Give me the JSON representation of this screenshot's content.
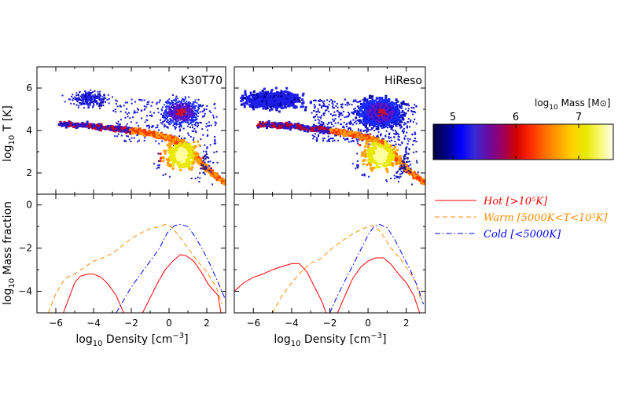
{
  "chart_data": [
    {
      "type": "heatmap",
      "panel_label": "K30T70",
      "ylabel": "log10 T [K]",
      "xlim": [
        -7,
        3
      ],
      "ylim": [
        1,
        7
      ],
      "yticks": [
        "2",
        "4",
        "6"
      ]
    },
    {
      "type": "heatmap",
      "panel_label": "HiReso",
      "xlim": [
        -7,
        3
      ],
      "ylim": [
        1,
        7
      ]
    },
    {
      "type": "line",
      "ylabel": "log10 Mass fraction",
      "xlabel": "log10 Density [cm-3]",
      "xlim": [
        -7,
        3
      ],
      "ylim": [
        -5,
        0.5
      ],
      "xticks": [
        "-6",
        "-4",
        "-2",
        "0",
        "2"
      ],
      "yticks": [
        "0",
        "-2",
        "-4"
      ],
      "series": [
        {
          "name": "Hot [>10^5K]",
          "color": "#ff0000",
          "dash": "solid",
          "segments": [
            [
              [
                -5.6,
                -5.0
              ],
              [
                -5.3,
                -4.3
              ],
              [
                -5.0,
                -3.6
              ],
              [
                -4.7,
                -3.3
              ],
              [
                -4.3,
                -3.2
              ],
              [
                -4.0,
                -3.2
              ],
              [
                -3.6,
                -3.35
              ],
              [
                -3.2,
                -3.7
              ],
              [
                -2.8,
                -4.2
              ],
              [
                -2.4,
                -5.0
              ]
            ],
            [
              [
                -1.4,
                -5.0
              ],
              [
                -1.0,
                -4.3
              ],
              [
                -0.6,
                -3.6
              ],
              [
                -0.2,
                -3.0
              ],
              [
                0.2,
                -2.6
              ],
              [
                0.6,
                -2.3
              ],
              [
                0.9,
                -2.35
              ],
              [
                1.3,
                -2.6
              ],
              [
                1.7,
                -3.1
              ],
              [
                2.1,
                -3.7
              ],
              [
                2.6,
                -4.2
              ],
              [
                2.75,
                -5.0
              ]
            ]
          ]
        },
        {
          "name": "Warm [5000K<T<10^5K]",
          "color": "#ff8c00",
          "dash": "dashed",
          "segments": [
            [
              [
                -6.4,
                -5.0
              ],
              [
                -6.0,
                -4.1
              ],
              [
                -5.5,
                -3.4
              ],
              [
                -5.0,
                -3.2
              ],
              [
                -4.5,
                -2.9
              ],
              [
                -4.0,
                -2.6
              ],
              [
                -3.5,
                -2.45
              ],
              [
                -3.0,
                -2.25
              ],
              [
                -2.5,
                -1.9
              ],
              [
                -2.0,
                -1.55
              ],
              [
                -1.5,
                -1.3
              ],
              [
                -1.0,
                -1.1
              ],
              [
                -0.5,
                -1.0
              ],
              [
                -0.2,
                -0.9
              ],
              [
                0.1,
                -1.0
              ],
              [
                0.5,
                -1.4
              ],
              [
                1.0,
                -2.0
              ],
              [
                1.5,
                -2.6
              ],
              [
                2.0,
                -3.1
              ],
              [
                2.5,
                -3.8
              ],
              [
                2.8,
                -4.6
              ]
            ]
          ]
        },
        {
          "name": "Cold [<5000K]",
          "color": "#0000ff",
          "dash": "dashdot",
          "segments": [
            [
              [
                -2.8,
                -5.0
              ],
              [
                -2.4,
                -4.4
              ],
              [
                -2.0,
                -3.8
              ],
              [
                -1.5,
                -3.2
              ],
              [
                -1.0,
                -2.6
              ],
              [
                -0.5,
                -2.0
              ],
              [
                -0.1,
                -1.3
              ],
              [
                0.3,
                -0.95
              ],
              [
                0.6,
                -0.9
              ],
              [
                1.0,
                -1.0
              ],
              [
                1.4,
                -1.5
              ],
              [
                1.8,
                -2.1
              ],
              [
                2.2,
                -2.8
              ],
              [
                2.6,
                -3.6
              ],
              [
                3.0,
                -4.4
              ]
            ]
          ]
        }
      ]
    },
    {
      "type": "line",
      "xlabel": "log10 Density [cm-3]",
      "xlim": [
        -7,
        3
      ],
      "ylim": [
        -5,
        0.5
      ],
      "xticks": [
        "-6",
        "-4",
        "-2",
        "0",
        "2"
      ],
      "series": [
        {
          "name": "Hot [>10^5K]",
          "color": "#ff0000",
          "dash": "solid",
          "segments": [
            [
              [
                -7.0,
                -4.0
              ],
              [
                -6.5,
                -3.6
              ],
              [
                -6.0,
                -3.35
              ],
              [
                -5.5,
                -3.2
              ],
              [
                -5.0,
                -3.0
              ],
              [
                -4.5,
                -2.85
              ],
              [
                -4.0,
                -2.72
              ],
              [
                -3.6,
                -2.72
              ],
              [
                -3.2,
                -3.1
              ],
              [
                -2.8,
                -3.8
              ],
              [
                -2.4,
                -4.5
              ],
              [
                -2.2,
                -5.0
              ]
            ],
            [
              [
                -1.6,
                -5.0
              ],
              [
                -1.2,
                -4.2
              ],
              [
                -0.8,
                -3.4
              ],
              [
                -0.4,
                -2.9
              ],
              [
                0.0,
                -2.6
              ],
              [
                0.4,
                -2.45
              ],
              [
                0.8,
                -2.45
              ],
              [
                1.2,
                -2.75
              ],
              [
                1.6,
                -3.2
              ],
              [
                2.0,
                -3.6
              ],
              [
                2.4,
                -4.2
              ],
              [
                2.7,
                -5.0
              ]
            ]
          ]
        },
        {
          "name": "Warm [5000K<T<10^5K]",
          "color": "#ff8c00",
          "dash": "dashed",
          "segments": [
            [
              [
                -5.0,
                -5.0
              ],
              [
                -4.5,
                -4.2
              ],
              [
                -4.0,
                -3.6
              ],
              [
                -3.5,
                -3.1
              ],
              [
                -3.0,
                -2.7
              ],
              [
                -2.5,
                -2.5
              ],
              [
                -2.0,
                -2.1
              ],
              [
                -1.5,
                -1.75
              ],
              [
                -1.0,
                -1.45
              ],
              [
                -0.5,
                -1.2
              ],
              [
                0.0,
                -1.0
              ],
              [
                0.3,
                -0.95
              ],
              [
                0.7,
                -1.3
              ],
              [
                1.2,
                -2.0
              ],
              [
                1.7,
                -2.5
              ],
              [
                2.1,
                -3.0
              ],
              [
                2.5,
                -3.6
              ],
              [
                2.8,
                -4.5
              ]
            ]
          ]
        },
        {
          "name": "Cold [<5000K]",
          "color": "#0000ff",
          "dash": "dashdot",
          "segments": [
            [
              [
                -2.0,
                -5.0
              ],
              [
                -1.6,
                -4.2
              ],
              [
                -1.2,
                -3.5
              ],
              [
                -0.8,
                -2.8
              ],
              [
                -0.4,
                -2.1
              ],
              [
                0.0,
                -1.4
              ],
              [
                0.3,
                -1.0
              ],
              [
                0.6,
                -0.9
              ],
              [
                1.0,
                -1.05
              ],
              [
                1.4,
                -1.6
              ],
              [
                1.8,
                -2.3
              ],
              [
                2.2,
                -3.0
              ],
              [
                2.6,
                -3.8
              ],
              [
                2.9,
                -4.6
              ]
            ]
          ]
        }
      ]
    }
  ],
  "colorbar": {
    "label": "log10 Mass [M⊙]",
    "ticks": [
      "5",
      "6",
      "7"
    ],
    "colors": [
      "#000040",
      "#00008b",
      "#0000ff",
      "#3a2bd6",
      "#6a0aa0",
      "#9b0060",
      "#d20000",
      "#ff2a00",
      "#ff6a00",
      "#ff9f00",
      "#ffd000",
      "#e8e800",
      "#f8f870",
      "#fffff0"
    ]
  },
  "legend": [
    {
      "label": "Hot [>10⁵K]",
      "color": "#ff0000",
      "dash": "solid"
    },
    {
      "label": "Warm [5000K<T<10⁵K]",
      "color": "#ff8c00",
      "dash": "dashed"
    },
    {
      "label": "Cold [<5000K]",
      "color": "#0000ff",
      "dash": "dashdot"
    }
  ]
}
